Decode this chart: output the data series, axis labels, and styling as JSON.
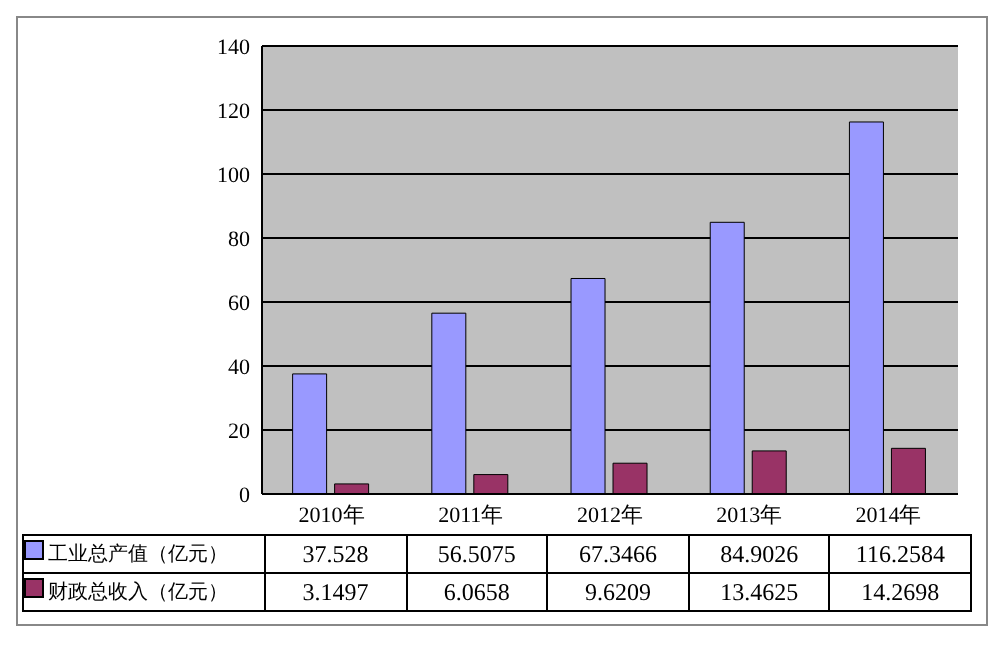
{
  "chart_data": {
    "type": "bar",
    "categories": [
      "2010年",
      "2011年",
      "2012年",
      "2013年",
      "2014年"
    ],
    "series": [
      {
        "name": "工业总产值（亿元）",
        "color": "#9999ff",
        "values": [
          37.528,
          56.5075,
          67.3466,
          84.9026,
          116.2584
        ]
      },
      {
        "name": "财政总收入（亿元）",
        "color": "#993366",
        "values": [
          3.1497,
          6.0658,
          9.6209,
          13.4625,
          14.2698
        ]
      }
    ],
    "ylim": [
      0,
      140
    ],
    "yticks": [
      0,
      20,
      40,
      60,
      80,
      100,
      120,
      140
    ],
    "grid": "y",
    "legend": "bottom",
    "data_labels": true
  }
}
